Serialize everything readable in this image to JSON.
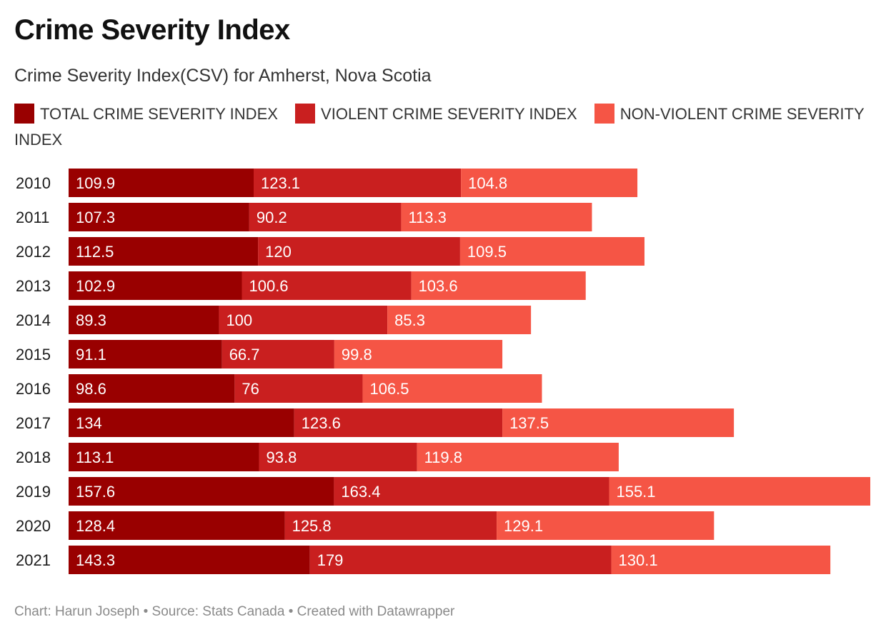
{
  "title": "Crime Severity Index",
  "subtitle": "Crime Severity Index(CSV) for Amherst, Nova Scotia",
  "footer": "Chart: Harun Joseph • Source: Stats Canada • Created with Datawrapper",
  "chart_data": {
    "type": "bar",
    "orientation": "horizontal",
    "stacked": true,
    "title": "Crime Severity Index",
    "subtitle": "Crime Severity Index(CSV) for Amherst, Nova Scotia",
    "legend_placement": "top",
    "grid": false,
    "categories": [
      "2010",
      "2011",
      "2012",
      "2013",
      "2014",
      "2015",
      "2016",
      "2017",
      "2018",
      "2019",
      "2020",
      "2021"
    ],
    "series": [
      {
        "name": "TOTAL CRIME SEVERITY INDEX",
        "color": "#990000",
        "values": [
          109.9,
          107.3,
          112.5,
          102.9,
          89.3,
          91.1,
          98.6,
          134,
          113.1,
          157.6,
          128.4,
          143.3
        ]
      },
      {
        "name": "VIOLENT CRIME SEVERITY INDEX",
        "color": "#c91f1f",
        "values": [
          123.1,
          90.2,
          120,
          100.6,
          100,
          66.7,
          76,
          123.6,
          93.8,
          163.4,
          125.8,
          179
        ]
      },
      {
        "name": "NON-VIOLENT CRIME SEVERITY INDEX",
        "color": "#f55545",
        "values": [
          104.8,
          113.3,
          109.5,
          103.6,
          85.3,
          99.8,
          106.5,
          137.5,
          119.8,
          155.1,
          129.1,
          130.1
        ]
      }
    ],
    "xlim": [
      0,
      476.1
    ]
  }
}
